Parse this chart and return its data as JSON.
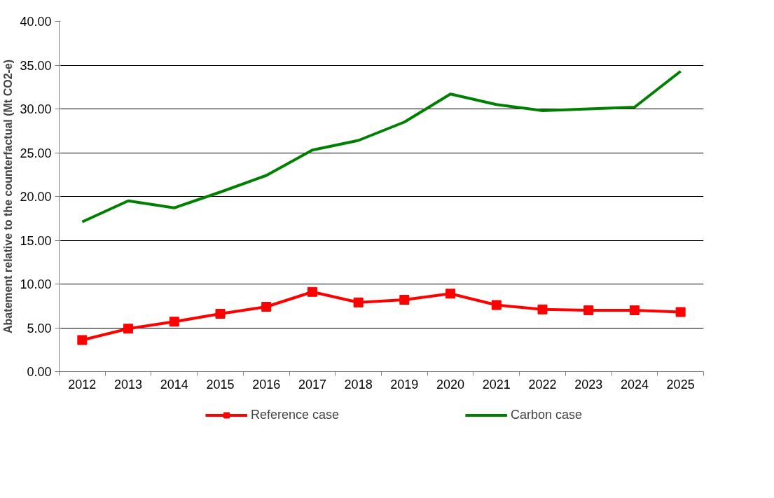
{
  "chart_data": {
    "type": "line",
    "ylabel": "Abatement relative to the counterfactual (Mt CO2-e)",
    "categories": [
      "2012",
      "2013",
      "2014",
      "2015",
      "2016",
      "2017",
      "2018",
      "2019",
      "2020",
      "2021",
      "2022",
      "2023",
      "2024",
      "2025"
    ],
    "series": [
      {
        "name": "Reference case",
        "color": "#ff0000",
        "marker": "square",
        "values": [
          3.6,
          4.9,
          5.7,
          6.6,
          7.4,
          9.1,
          7.9,
          8.2,
          8.9,
          7.6,
          7.1,
          7.0,
          7.0,
          6.8
        ]
      },
      {
        "name": "Carbon case",
        "color": "#008000",
        "marker": "none",
        "values": [
          17.1,
          19.5,
          18.7,
          20.5,
          22.4,
          25.3,
          26.4,
          28.5,
          31.7,
          30.5,
          29.8,
          30.0,
          30.2,
          34.3
        ]
      }
    ],
    "ylim": [
      0,
      40
    ],
    "yticks": [
      {
        "value": 0,
        "label": "0.00"
      },
      {
        "value": 5,
        "label": "5.00"
      },
      {
        "value": 10,
        "label": "10.00"
      },
      {
        "value": 15,
        "label": "15.00"
      },
      {
        "value": 20,
        "label": "20.00"
      },
      {
        "value": 25,
        "label": "25.00"
      },
      {
        "value": 30,
        "label": "30.00"
      },
      {
        "value": 35,
        "label": "35.00"
      },
      {
        "value": 40,
        "label": "40.00"
      }
    ],
    "grid": "y",
    "legend": "bottom"
  }
}
